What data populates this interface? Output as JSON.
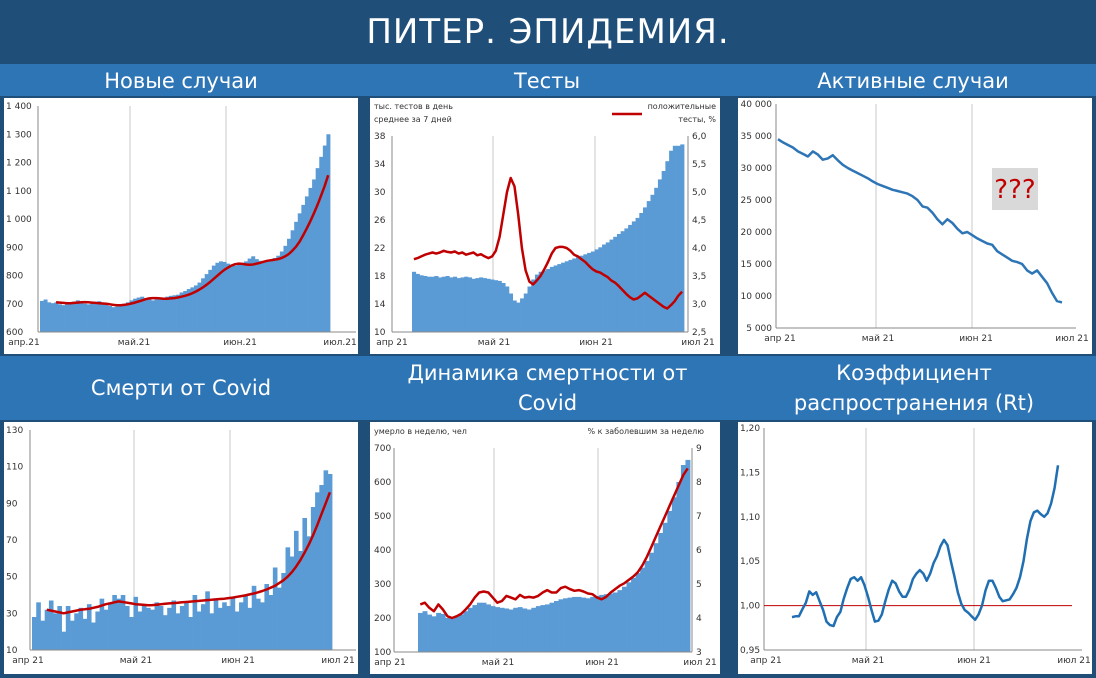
{
  "title": "ПИТЕР. ЭПИДЕМИЯ.",
  "panels": [
    {
      "title": "Новые случаи"
    },
    {
      "title": "Тесты"
    },
    {
      "title": "Активные случаи"
    },
    {
      "title": "Смерти от Covid"
    },
    {
      "title": "Динамика смертности от Covid"
    },
    {
      "title": "Коэффициент распространения (Rt)"
    }
  ],
  "colors": {
    "bars": "#5b9bd5",
    "avg": "#c00000",
    "line": "#2e75b6",
    "rt_line": "#1f6fb2",
    "ref": "#c00000"
  },
  "chart_data": [
    {
      "type": "bar",
      "title": "Новые случаи",
      "x_tick_labels": [
        "апр.21",
        "май.21",
        "июн.21",
        "июл.21"
      ],
      "ylim": [
        600,
        1400
      ],
      "yticks": [
        600,
        700,
        800,
        900,
        1000,
        1100,
        1200,
        1300,
        1400
      ],
      "series": [
        {
          "values": [
            710,
            715,
            705,
            702,
            705,
            698,
            695,
            700,
            705,
            708,
            712,
            705,
            700,
            698,
            702,
            706,
            709,
            703,
            697,
            692,
            688,
            690,
            695,
            700,
            705,
            712,
            718,
            722,
            725,
            720,
            715,
            712,
            716,
            720,
            722,
            725,
            728,
            730,
            732,
            740,
            745,
            752,
            758,
            765,
            775,
            790,
            805,
            820,
            835,
            845,
            850,
            848,
            842,
            838,
            835,
            840,
            845,
            850,
            860,
            868,
            858,
            852,
            848,
            850,
            855,
            862,
            870,
            885,
            905,
            930,
            960,
            990,
            1020,
            1050,
            1080,
            1110,
            1140,
            1180,
            1220,
            1260,
            1300
          ]
        },
        {
          "values": [
            null,
            null,
            null,
            null,
            705,
            704,
            703,
            702,
            702,
            703,
            704,
            705,
            706,
            705,
            704,
            703,
            702,
            701,
            700,
            698,
            696,
            695,
            695,
            696,
            698,
            701,
            704,
            708,
            712,
            716,
            719,
            720,
            720,
            719,
            718,
            718,
            719,
            720,
            722,
            725,
            728,
            732,
            737,
            743,
            750,
            758,
            767,
            777,
            788,
            799,
            810,
            820,
            828,
            835,
            840,
            842,
            841,
            839,
            838,
            839,
            842,
            845,
            849,
            852,
            854,
            856,
            858,
            862,
            868,
            876,
            888,
            902,
            920,
            942,
            966,
            992,
            1020,
            1050,
            1082,
            1116,
            1155
          ]
        }
      ]
    },
    {
      "type": "bar",
      "title": "Тесты",
      "texts": {
        "left_label_1": "тыс. тестов в день",
        "left_label_2": "среднее за 7 дней",
        "legend_1": "положительные",
        "legend_2": "тесты, %"
      },
      "x_tick_labels": [
        "апр 21",
        "май 21",
        "июн 21",
        "июл 21"
      ],
      "ylim": [
        10,
        38
      ],
      "yticks": [
        10,
        14,
        18,
        22,
        26,
        30,
        34,
        38
      ],
      "y2lim": [
        2.5,
        6.0
      ],
      "y2ticks": [
        "2,5",
        "3,0",
        "3,5",
        "4,0",
        "4,5",
        "5,0",
        "5,5",
        "6,0"
      ],
      "series": [
        {
          "values": [
            18.6,
            18.3,
            18.1,
            18.0,
            17.9,
            17.9,
            18.0,
            17.8,
            17.9,
            18.0,
            17.8,
            17.9,
            17.7,
            17.8,
            17.9,
            17.8,
            17.6,
            17.7,
            17.8,
            17.7,
            17.6,
            17.5,
            17.4,
            17.3,
            17.0,
            16.5,
            15.5,
            14.5,
            14.2,
            14.8,
            15.5,
            16.5,
            17.5,
            18.2,
            18.6,
            18.8,
            19.0,
            19.3,
            19.5,
            19.7,
            19.9,
            20.1,
            20.3,
            20.5,
            20.7,
            20.9,
            21.1,
            21.3,
            21.5,
            21.8,
            22.1,
            22.5,
            22.8,
            23.2,
            23.6,
            24.0,
            24.4,
            24.8,
            25.3,
            25.8,
            26.3,
            27.0,
            27.8,
            28.7,
            29.6,
            30.6,
            31.8,
            33.0,
            34.4,
            35.9,
            36.6,
            36.6,
            36.8
          ]
        },
        {
          "values": [
            3.8,
            3.82,
            3.85,
            3.88,
            3.9,
            3.92,
            3.9,
            3.92,
            3.95,
            3.93,
            3.92,
            3.94,
            3.9,
            3.92,
            3.88,
            3.9,
            3.92,
            3.87,
            3.89,
            3.85,
            3.82,
            3.85,
            3.95,
            4.2,
            4.6,
            5.0,
            5.25,
            5.1,
            4.6,
            4.0,
            3.6,
            3.4,
            3.35,
            3.42,
            3.5,
            3.62,
            3.75,
            3.9,
            4.0,
            4.02,
            4.02,
            4.0,
            3.95,
            3.88,
            3.85,
            3.8,
            3.75,
            3.68,
            3.62,
            3.58,
            3.56,
            3.52,
            3.48,
            3.42,
            3.38,
            3.32,
            3.25,
            3.18,
            3.12,
            3.08,
            3.1,
            3.15,
            3.2,
            3.15,
            3.1,
            3.05,
            3.0,
            2.95,
            2.92,
            2.98,
            3.05,
            3.15,
            3.22
          ]
        }
      ]
    },
    {
      "type": "line",
      "title": "Активные случаи",
      "annotation": "???",
      "x_tick_labels": [
        "апр 21",
        "май 21",
        "июн 21",
        "июл 21"
      ],
      "ylim": [
        5000,
        40000
      ],
      "yticks": [
        "5 000",
        "10 000",
        "15 000",
        "20 000",
        "25 000",
        "30 000",
        "35 000",
        "40 000"
      ],
      "series": [
        {
          "values": [
            34500,
            34000,
            33600,
            33200,
            32600,
            32200,
            31800,
            32600,
            32100,
            31300,
            31500,
            32000,
            31200,
            30500,
            30000,
            29600,
            29200,
            28800,
            28400,
            27900,
            27500,
            27200,
            26900,
            26600,
            26400,
            26200,
            26000,
            25600,
            25000,
            24000,
            23800,
            23000,
            22000,
            21200,
            22000,
            21400,
            20500,
            19800,
            20000,
            19500,
            19000,
            18600,
            18200,
            18000,
            17000,
            16500,
            16000,
            15500,
            15300,
            15000,
            14000,
            13500,
            14000,
            13000,
            12000,
            10500,
            9200,
            9000
          ]
        }
      ]
    },
    {
      "type": "bar",
      "title": "Смерти от Covid",
      "x_tick_labels": [
        "апр 21",
        "май 21",
        "июн 21",
        "июл 21"
      ],
      "ylim": [
        10,
        130
      ],
      "yticks": [
        10,
        30,
        50,
        70,
        90,
        110,
        130
      ],
      "series": [
        {
          "values": [
            28,
            36,
            26,
            32,
            37,
            30,
            34,
            20,
            34,
            26,
            30,
            33,
            27,
            35,
            25,
            31,
            38,
            32,
            36,
            40,
            38,
            40,
            34,
            28,
            39,
            31,
            35,
            33,
            32,
            36,
            34,
            29,
            33,
            37,
            30,
            34,
            36,
            28,
            40,
            31,
            35,
            42,
            30,
            37,
            33,
            36,
            34,
            39,
            31,
            36,
            40,
            33,
            45,
            38,
            36,
            46,
            40,
            55,
            44,
            52,
            66,
            61,
            75,
            64,
            82,
            72,
            88,
            96,
            100,
            108,
            106
          ]
        },
        {
          "values": [
            null,
            null,
            null,
            32,
            31.5,
            31,
            30.5,
            30,
            30.5,
            31,
            31.5,
            32,
            32.2,
            32.5,
            33,
            33.5,
            34.2,
            35,
            35.5,
            36,
            36.5,
            36.2,
            35.8,
            35.4,
            35,
            34.8,
            34.6,
            34.4,
            34.5,
            34.7,
            35,
            35.2,
            35.4,
            35.6,
            35.8,
            36,
            36.2,
            36.4,
            36.6,
            36.8,
            37,
            37.2,
            37.4,
            37.6,
            37.8,
            38,
            38.3,
            38.6,
            39,
            39.4,
            39.8,
            40.3,
            40.8,
            41.5,
            42.2,
            43,
            44,
            45,
            46.5,
            48,
            50,
            52.5,
            55.5,
            59,
            63,
            67.5,
            72.5,
            78,
            84,
            90,
            96
          ]
        }
      ]
    },
    {
      "type": "bar",
      "title": "Динамика смертности от Covid",
      "texts": {
        "left_label": "умерло в неделю, чел",
        "right_label": "% к заболевшим за неделю"
      },
      "x_tick_labels": [
        "апр 21",
        "май 21",
        "июн 21",
        "июл 21"
      ],
      "ylim": [
        100,
        700
      ],
      "yticks": [
        100,
        200,
        300,
        400,
        500,
        600,
        700
      ],
      "y2lim": [
        3,
        9
      ],
      "y2ticks": [
        3,
        4,
        5,
        6,
        7,
        8,
        9
      ],
      "series": [
        {
          "values": [
            215,
            220,
            210,
            205,
            215,
            212,
            200,
            198,
            205,
            210,
            220,
            230,
            238,
            245,
            245,
            240,
            235,
            232,
            230,
            228,
            225,
            230,
            232,
            228,
            225,
            230,
            235,
            238,
            240,
            245,
            250,
            255,
            258,
            260,
            262,
            262,
            260,
            258,
            262,
            265,
            268,
            270,
            272,
            275,
            282,
            292,
            305,
            318,
            332,
            348,
            368,
            392,
            420,
            450,
            480,
            515,
            555,
            600,
            650,
            665
          ]
        },
        {
          "values": [
            4.4,
            4.45,
            4.3,
            4.2,
            4.4,
            4.25,
            4.05,
            4.0,
            4.05,
            4.12,
            4.25,
            4.4,
            4.6,
            4.75,
            4.78,
            4.75,
            4.6,
            4.45,
            4.5,
            4.65,
            4.6,
            4.55,
            4.68,
            4.6,
            4.62,
            4.6,
            4.65,
            4.75,
            4.82,
            4.75,
            4.75,
            4.88,
            4.92,
            4.85,
            4.8,
            4.82,
            4.78,
            4.72,
            4.7,
            4.6,
            4.55,
            4.62,
            4.75,
            4.85,
            4.95,
            5.02,
            5.12,
            5.22,
            5.35,
            5.55,
            5.8,
            6.1,
            6.4,
            6.7,
            7.0,
            7.3,
            7.6,
            7.9,
            8.2,
            8.4
          ]
        }
      ]
    },
    {
      "type": "line",
      "title": "Коэффициент распространения (Rt)",
      "x_tick_labels": [
        "апр 21",
        "май 21",
        "июн 21",
        "июл 21"
      ],
      "ylim": [
        0.95,
        1.2
      ],
      "yticks": [
        "0,95",
        "1,00",
        "1,05",
        "1,10",
        "1,15",
        "1,20"
      ],
      "reference": 1.0,
      "series": [
        {
          "values": [
            0.987,
            0.988,
            0.988,
            0.996,
            1.003,
            1.016,
            1.012,
            1.015,
            1.005,
            0.995,
            0.982,
            0.978,
            0.977,
            0.987,
            0.993,
            1.008,
            1.02,
            1.03,
            1.032,
            1.028,
            1.032,
            1.023,
            1.01,
            0.995,
            0.982,
            0.983,
            0.99,
            1.005,
            1.018,
            1.028,
            1.025,
            1.016,
            1.01,
            1.01,
            1.018,
            1.03,
            1.036,
            1.04,
            1.036,
            1.028,
            1.036,
            1.048,
            1.056,
            1.067,
            1.074,
            1.068,
            1.05,
            1.033,
            1.015,
            1.002,
            0.995,
            0.992,
            0.988,
            0.984,
            0.99,
            1.0,
            1.017,
            1.028,
            1.028,
            1.02,
            1.01,
            1.005,
            1.006,
            1.007,
            1.013,
            1.02,
            1.032,
            1.05,
            1.075,
            1.095,
            1.105,
            1.107,
            1.103,
            1.1,
            1.104,
            1.115,
            1.132,
            1.158
          ]
        }
      ]
    }
  ]
}
